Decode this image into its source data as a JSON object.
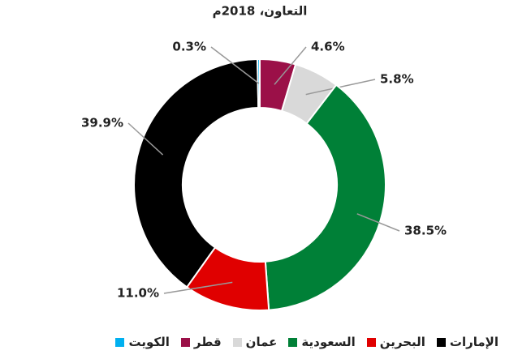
{
  "chart_data": {
    "type": "donut",
    "title": "التعاون، 2018م",
    "categories": [
      "الإمارات",
      "البحرين",
      "السعودية",
      "عمان",
      "قطر",
      "الكويت"
    ],
    "values": [
      39.9,
      11.0,
      38.5,
      5.8,
      4.6,
      0.3
    ],
    "value_labels": [
      "39.9%",
      "11.0%",
      "38.5%",
      "5.8%",
      "4.6%",
      "0.3%"
    ],
    "colors": [
      "#000000",
      "#e00000",
      "#008037",
      "#d9d9d9",
      "#9b1048",
      "#00b0f0"
    ]
  }
}
